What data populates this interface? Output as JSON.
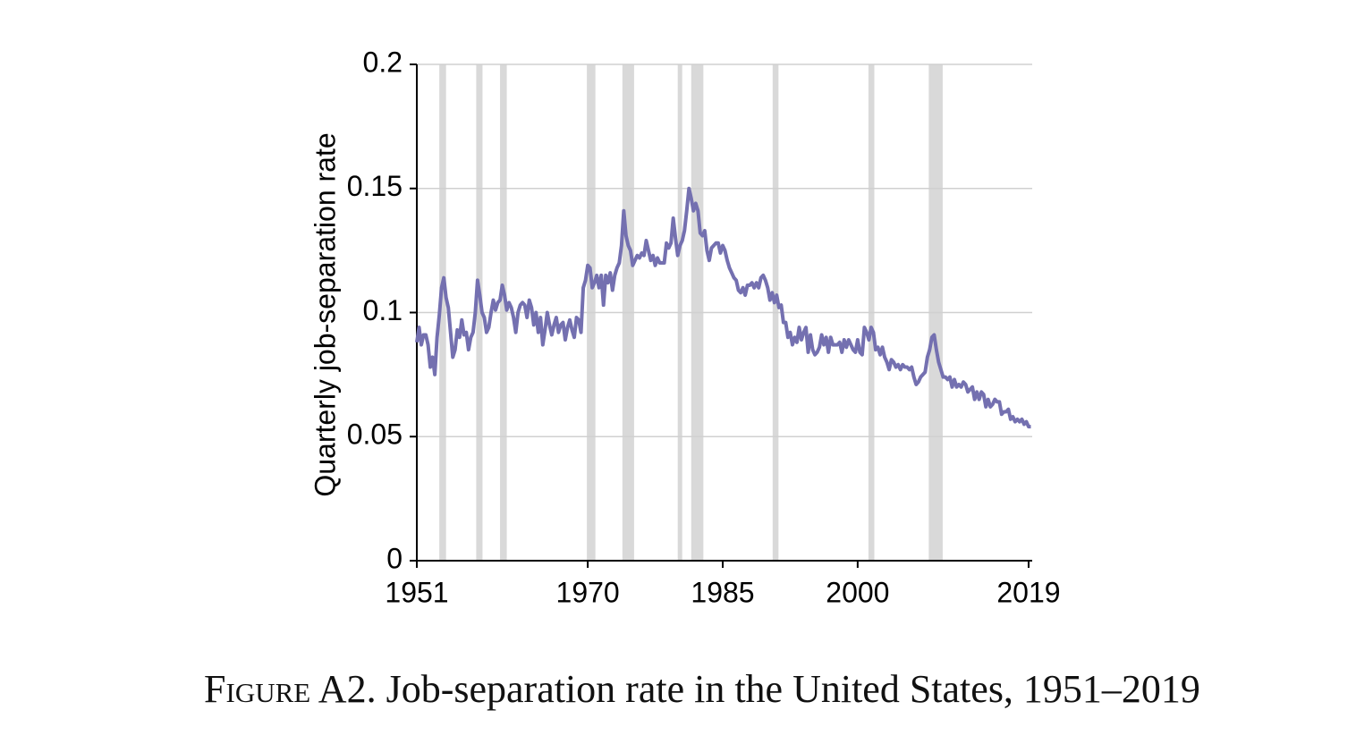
{
  "chart_data": {
    "type": "line",
    "caption_label": "Figure A2.",
    "title": "Job-separation rate in the United States, 1951–2019",
    "y_label": "Quarterly job-separation rate",
    "xlim": [
      1951,
      2019.4
    ],
    "xticks": [
      1951,
      1970,
      1985,
      2000,
      2019
    ],
    "ylim": [
      0,
      0.2
    ],
    "yticks": [
      0,
      0.05,
      0.1,
      0.15,
      0.2
    ],
    "grid": true,
    "shaded_regions": [
      [
        1953.5,
        1954.25
      ],
      [
        1957.6,
        1958.3
      ],
      [
        1960.25,
        1961.0
      ],
      [
        1969.9,
        1970.85
      ],
      [
        1973.85,
        1975.15
      ],
      [
        1980.0,
        1980.5
      ],
      [
        1981.5,
        1982.85
      ],
      [
        1990.55,
        1991.2
      ],
      [
        2001.2,
        2001.85
      ],
      [
        2007.9,
        2009.45
      ]
    ],
    "shade_color": "#d9d9d9",
    "x": [
      1951.0,
      1951.25,
      1951.5,
      1951.75,
      1952.0,
      1952.25,
      1952.5,
      1952.75,
      1953.0,
      1953.25,
      1953.5,
      1953.75,
      1954.0,
      1954.25,
      1954.5,
      1954.75,
      1955.0,
      1955.25,
      1955.5,
      1955.75,
      1956.0,
      1956.25,
      1956.5,
      1956.75,
      1957.0,
      1957.25,
      1957.5,
      1957.75,
      1958.0,
      1958.25,
      1958.5,
      1958.75,
      1959.0,
      1959.25,
      1959.5,
      1959.75,
      1960.0,
      1960.25,
      1960.5,
      1960.75,
      1961.0,
      1961.25,
      1961.5,
      1961.75,
      1962.0,
      1962.25,
      1962.5,
      1962.75,
      1963.0,
      1963.25,
      1963.5,
      1963.75,
      1964.0,
      1964.25,
      1964.5,
      1964.75,
      1965.0,
      1965.25,
      1965.5,
      1965.75,
      1966.0,
      1966.25,
      1966.5,
      1966.75,
      1967.0,
      1967.25,
      1967.5,
      1967.75,
      1968.0,
      1968.25,
      1968.5,
      1968.75,
      1969.0,
      1969.25,
      1969.5,
      1969.75,
      1970.0,
      1970.25,
      1970.5,
      1970.75,
      1971.0,
      1971.25,
      1971.5,
      1971.75,
      1972.0,
      1972.25,
      1972.5,
      1972.75,
      1973.0,
      1973.25,
      1973.5,
      1973.75,
      1974.0,
      1974.25,
      1974.5,
      1974.75,
      1975.0,
      1975.25,
      1975.5,
      1975.75,
      1976.0,
      1976.25,
      1976.5,
      1976.75,
      1977.0,
      1977.25,
      1977.5,
      1977.75,
      1978.0,
      1978.25,
      1978.5,
      1978.75,
      1979.0,
      1979.25,
      1979.5,
      1979.75,
      1980.0,
      1980.25,
      1980.5,
      1980.75,
      1981.0,
      1981.25,
      1981.5,
      1981.75,
      1982.0,
      1982.25,
      1982.5,
      1982.75,
      1983.0,
      1983.25,
      1983.5,
      1983.75,
      1984.0,
      1984.25,
      1984.5,
      1984.75,
      1985.0,
      1985.25,
      1985.5,
      1985.75,
      1986.0,
      1986.25,
      1986.5,
      1986.75,
      1987.0,
      1987.25,
      1987.5,
      1987.75,
      1988.0,
      1988.25,
      1988.5,
      1988.75,
      1989.0,
      1989.25,
      1989.5,
      1989.75,
      1990.0,
      1990.25,
      1990.5,
      1990.75,
      1991.0,
      1991.25,
      1991.5,
      1991.75,
      1992.0,
      1992.25,
      1992.5,
      1992.75,
      1993.0,
      1993.25,
      1993.5,
      1993.75,
      1994.0,
      1994.25,
      1994.5,
      1994.75,
      1995.0,
      1995.25,
      1995.5,
      1995.75,
      1996.0,
      1996.25,
      1996.5,
      1996.75,
      1997.0,
      1997.25,
      1997.5,
      1997.75,
      1998.0,
      1998.25,
      1998.5,
      1998.75,
      1999.0,
      1999.25,
      1999.5,
      1999.75,
      2000.0,
      2000.25,
      2000.5,
      2000.75,
      2001.0,
      2001.25,
      2001.5,
      2001.75,
      2002.0,
      2002.25,
      2002.5,
      2002.75,
      2003.0,
      2003.25,
      2003.5,
      2003.75,
      2004.0,
      2004.25,
      2004.5,
      2004.75,
      2005.0,
      2005.25,
      2005.5,
      2005.75,
      2006.0,
      2006.25,
      2006.5,
      2006.75,
      2007.0,
      2007.25,
      2007.5,
      2007.75,
      2008.0,
      2008.25,
      2008.5,
      2008.75,
      2009.0,
      2009.25,
      2009.5,
      2009.75,
      2010.0,
      2010.25,
      2010.5,
      2010.75,
      2011.0,
      2011.25,
      2011.5,
      2011.75,
      2012.0,
      2012.25,
      2012.5,
      2012.75,
      2013.0,
      2013.25,
      2013.5,
      2013.75,
      2014.0,
      2014.25,
      2014.5,
      2014.75,
      2015.0,
      2015.25,
      2015.5,
      2015.75,
      2016.0,
      2016.25,
      2016.5,
      2016.75,
      2017.0,
      2017.25,
      2017.5,
      2017.75,
      2018.0,
      2018.25,
      2018.5,
      2018.75,
      2019.0,
      2019.25
    ],
    "series": [
      {
        "color": "#7470b0",
        "values": [
          0.088,
          0.094,
          0.087,
          0.091,
          0.091,
          0.087,
          0.078,
          0.082,
          0.075,
          0.09,
          0.099,
          0.11,
          0.114,
          0.106,
          0.102,
          0.092,
          0.082,
          0.085,
          0.093,
          0.09,
          0.097,
          0.091,
          0.092,
          0.085,
          0.09,
          0.092,
          0.1,
          0.113,
          0.107,
          0.1,
          0.098,
          0.092,
          0.094,
          0.1,
          0.105,
          0.101,
          0.104,
          0.105,
          0.111,
          0.107,
          0.101,
          0.104,
          0.102,
          0.098,
          0.092,
          0.1,
          0.103,
          0.104,
          0.103,
          0.098,
          0.105,
          0.102,
          0.095,
          0.1,
          0.092,
          0.098,
          0.087,
          0.093,
          0.1,
          0.095,
          0.091,
          0.095,
          0.098,
          0.092,
          0.095,
          0.096,
          0.089,
          0.094,
          0.097,
          0.093,
          0.09,
          0.098,
          0.097,
          0.092,
          0.11,
          0.113,
          0.119,
          0.118,
          0.11,
          0.112,
          0.115,
          0.11,
          0.115,
          0.103,
          0.115,
          0.112,
          0.116,
          0.109,
          0.115,
          0.118,
          0.12,
          0.127,
          0.141,
          0.131,
          0.127,
          0.125,
          0.119,
          0.121,
          0.123,
          0.122,
          0.124,
          0.123,
          0.129,
          0.125,
          0.121,
          0.123,
          0.119,
          0.122,
          0.12,
          0.12,
          0.12,
          0.128,
          0.126,
          0.128,
          0.138,
          0.13,
          0.123,
          0.127,
          0.129,
          0.133,
          0.141,
          0.15,
          0.146,
          0.141,
          0.144,
          0.141,
          0.132,
          0.131,
          0.133,
          0.125,
          0.121,
          0.126,
          0.127,
          0.128,
          0.128,
          0.124,
          0.127,
          0.125,
          0.121,
          0.118,
          0.116,
          0.114,
          0.113,
          0.109,
          0.108,
          0.11,
          0.107,
          0.111,
          0.111,
          0.112,
          0.11,
          0.112,
          0.11,
          0.114,
          0.115,
          0.113,
          0.11,
          0.105,
          0.108,
          0.104,
          0.107,
          0.102,
          0.103,
          0.096,
          0.096,
          0.09,
          0.092,
          0.087,
          0.09,
          0.088,
          0.094,
          0.089,
          0.092,
          0.094,
          0.084,
          0.091,
          0.085,
          0.083,
          0.084,
          0.086,
          0.091,
          0.087,
          0.09,
          0.084,
          0.09,
          0.087,
          0.087,
          0.087,
          0.088,
          0.084,
          0.089,
          0.086,
          0.089,
          0.087,
          0.085,
          0.084,
          0.089,
          0.084,
          0.083,
          0.094,
          0.092,
          0.089,
          0.094,
          0.092,
          0.085,
          0.086,
          0.083,
          0.086,
          0.082,
          0.08,
          0.077,
          0.081,
          0.08,
          0.078,
          0.079,
          0.077,
          0.079,
          0.078,
          0.078,
          0.077,
          0.078,
          0.074,
          0.071,
          0.072,
          0.074,
          0.075,
          0.076,
          0.082,
          0.085,
          0.09,
          0.091,
          0.085,
          0.08,
          0.077,
          0.074,
          0.074,
          0.073,
          0.074,
          0.07,
          0.073,
          0.07,
          0.071,
          0.07,
          0.072,
          0.071,
          0.068,
          0.069,
          0.07,
          0.065,
          0.068,
          0.065,
          0.068,
          0.067,
          0.062,
          0.065,
          0.062,
          0.063,
          0.065,
          0.064,
          0.064,
          0.059,
          0.06,
          0.06,
          0.061,
          0.057,
          0.058,
          0.056,
          0.057,
          0.056,
          0.057,
          0.055,
          0.056,
          0.054,
          0.054
        ]
      }
    ]
  }
}
